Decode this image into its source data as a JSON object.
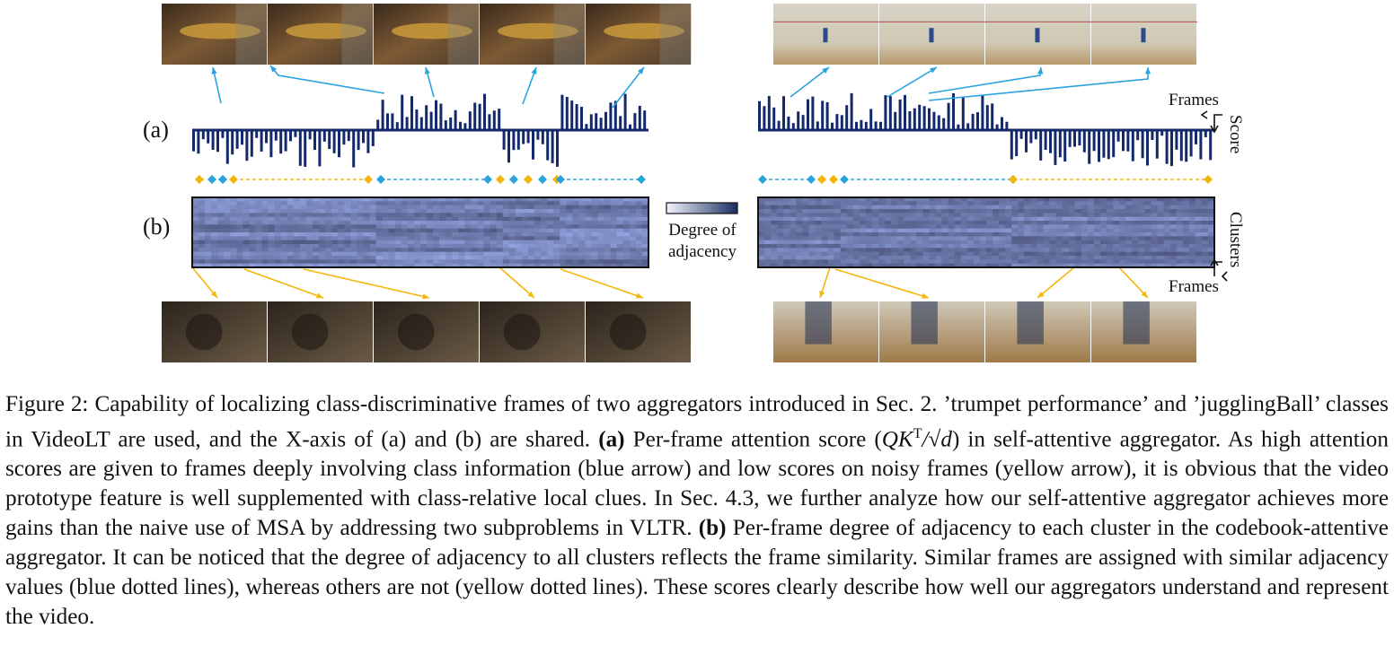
{
  "figure": {
    "panel_a_label": "(a)",
    "panel_b_label": "(b)",
    "legend": {
      "line1": "Degree of",
      "line2": "adjacency",
      "colors": [
        "#f2f5fb",
        "#1b2d63"
      ]
    },
    "axes": {
      "frames_top": "Frames",
      "score": "Score",
      "clusters": "Clusters",
      "frames_bottom": "Frames"
    },
    "colors": {
      "bar": "#13296b",
      "blue_arrow": "#29a3df",
      "yellow_arrow": "#f5b60c",
      "heatmap_border": "#111111"
    }
  },
  "caption": {
    "prefix": "Figure 2: Capability of localizing class-discriminative frames of two aggregators introduced in Sec. 2. ’trumpet performance’ and ’jugglingBall’ classes in VideoLT are used, and the X-axis of (a) and (b) are shared. ",
    "a_bold": "(a)",
    "a_text": " Per-frame attention score (",
    "a_formula": "QK",
    "a_formula_sup": "T",
    "a_formula_rest": "/√d",
    "a_text2": ") in self-attentive aggregator. As high attention scores are given to frames deeply involving class information (blue arrow) and low scores on noisy frames (yellow arrow), it is obvious that the video prototype feature is well supplemented with class-relative local clues. In Sec. 4.3, we further analyze how our self-attentive aggregator achieves more gains than the naive use of MSA by addressing two subproblems in VLTR. ",
    "b_bold": "(b)",
    "b_text": " Per-frame degree of adjacency to each cluster in the codebook-attentive aggregator. It can be noticed that the degree of adjacency to all clusters reflects the frame similarity. Similar frames are assigned with similar adjacency values (blue dotted lines), whereas others are not (yellow dotted lines). These scores clearly describe how well our aggregators understand and represent the video."
  }
}
